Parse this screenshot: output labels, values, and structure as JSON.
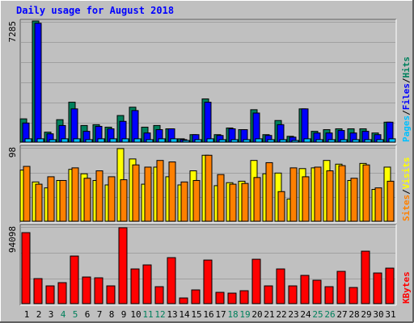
{
  "title": "Daily usage for August 2018",
  "colors": {
    "background": "#c0c0c0",
    "title": "#0000ff",
    "hits": "#00805c",
    "files": "#0000ff",
    "pages": "#00c0ff",
    "visits": "#ffff00",
    "sites": "#ff8000",
    "kbytes": "#ff0000",
    "weekend_day": "#00805c",
    "weekday": "#000000"
  },
  "chart_data": [
    {
      "type": "bar",
      "panel": "hits-files-pages",
      "ymax_label": "7285",
      "ylim": [
        0,
        7285
      ],
      "legend": [
        "Pages",
        "/",
        "Files",
        "/",
        "Hits"
      ],
      "categories": [
        "1",
        "2",
        "3",
        "4",
        "5",
        "6",
        "7",
        "8",
        "9",
        "10",
        "11",
        "12",
        "13",
        "14",
        "15",
        "16",
        "17",
        "18",
        "19",
        "20",
        "21",
        "22",
        "23",
        "24",
        "25",
        "26",
        "27",
        "28",
        "29",
        "30",
        "31"
      ],
      "weekend_days": [
        4,
        5,
        11,
        12,
        18,
        19,
        25,
        26
      ],
      "series": [
        {
          "name": "Hits",
          "values": [
            1400,
            7285,
            600,
            1350,
            2400,
            1000,
            1050,
            900,
            1600,
            2100,
            900,
            1000,
            800,
            200,
            450,
            2600,
            450,
            850,
            750,
            1950,
            450,
            1300,
            350,
            2000,
            650,
            750,
            800,
            800,
            800,
            550,
            1200
          ]
        },
        {
          "name": "Files",
          "values": [
            1150,
            7150,
            500,
            1000,
            2000,
            650,
            950,
            800,
            1250,
            1900,
            550,
            750,
            800,
            150,
            450,
            2400,
            400,
            800,
            750,
            1750,
            400,
            1050,
            300,
            2000,
            550,
            550,
            700,
            550,
            650,
            450,
            1200
          ]
        },
        {
          "name": "Pages",
          "values": [
            200,
            200,
            150,
            200,
            200,
            150,
            200,
            200,
            200,
            200,
            150,
            200,
            200,
            100,
            150,
            200,
            150,
            150,
            150,
            200,
            150,
            150,
            100,
            200,
            150,
            150,
            150,
            150,
            150,
            150,
            200
          ]
        }
      ]
    },
    {
      "type": "bar",
      "panel": "visits-sites",
      "ymax_label": "98",
      "ylim": [
        0,
        98
      ],
      "legend": [
        "Sites",
        "/",
        "Visits"
      ],
      "categories": [
        "1",
        "2",
        "3",
        "4",
        "5",
        "6",
        "7",
        "8",
        "9",
        "10",
        "11",
        "12",
        "13",
        "14",
        "15",
        "16",
        "17",
        "18",
        "19",
        "20",
        "21",
        "22",
        "23",
        "24",
        "25",
        "26",
        "27",
        "28",
        "29",
        "30",
        "31"
      ],
      "series": [
        {
          "name": "Visits",
          "values": [
            69,
            53,
            45,
            55,
            70,
            64,
            55,
            49,
            98,
            84,
            50,
            73,
            60,
            49,
            68,
            89,
            48,
            52,
            54,
            82,
            64,
            65,
            30,
            71,
            72,
            82,
            77,
            55,
            78,
            43,
            73
          ]
        },
        {
          "name": "Sites",
          "values": [
            74,
            50,
            60,
            55,
            72,
            58,
            68,
            60,
            56,
            76,
            73,
            82,
            80,
            53,
            55,
            89,
            63,
            50,
            51,
            59,
            79,
            40,
            72,
            60,
            73,
            68,
            75,
            58,
            76,
            45,
            54
          ]
        }
      ]
    },
    {
      "type": "bar",
      "panel": "kbytes",
      "ymax_label": "94098",
      "ylim": [
        0,
        94098
      ],
      "legend": [
        "KBytes"
      ],
      "categories": [
        "1",
        "2",
        "3",
        "4",
        "5",
        "6",
        "7",
        "8",
        "9",
        "10",
        "11",
        "12",
        "13",
        "14",
        "15",
        "16",
        "17",
        "18",
        "19",
        "20",
        "21",
        "22",
        "23",
        "24",
        "25",
        "26",
        "27",
        "28",
        "29",
        "30",
        "31"
      ],
      "series": [
        {
          "name": "KBytes",
          "values": [
            88000,
            31000,
            22000,
            26000,
            59000,
            33000,
            32000,
            22000,
            94098,
            43000,
            48000,
            21000,
            57000,
            7000,
            17000,
            54000,
            14000,
            13000,
            16000,
            55000,
            22000,
            43000,
            22000,
            35000,
            29000,
            21000,
            40000,
            20000,
            65000,
            38000,
            44000
          ]
        }
      ]
    }
  ]
}
